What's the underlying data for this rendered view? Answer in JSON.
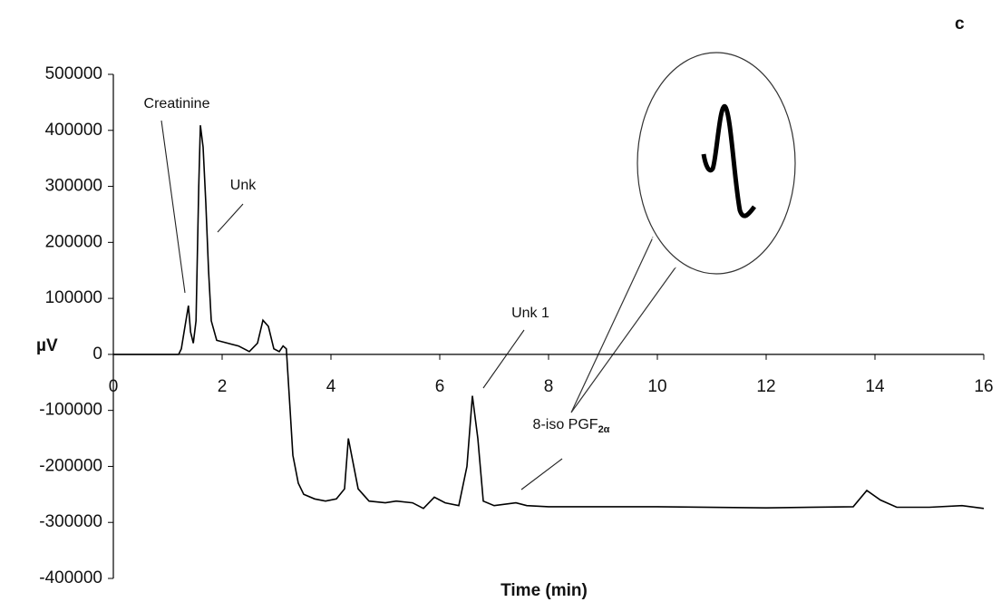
{
  "chart_data": {
    "type": "line",
    "panel_label": "c",
    "x_label": "Time (min)",
    "y_label": "µV",
    "x": [
      0,
      1.2,
      1.25,
      1.3,
      1.38,
      1.42,
      1.47,
      1.52,
      1.57,
      1.6,
      1.65,
      1.7,
      1.75,
      1.8,
      1.9,
      2.1,
      2.3,
      2.5,
      2.65,
      2.75,
      2.85,
      2.95,
      3.05,
      3.12,
      3.18,
      3.25,
      3.3,
      3.4,
      3.5,
      3.7,
      3.9,
      4.1,
      4.25,
      4.32,
      4.4,
      4.5,
      4.7,
      5.0,
      5.2,
      5.5,
      5.7,
      5.9,
      6.1,
      6.35,
      6.5,
      6.6,
      6.7,
      6.8,
      7.0,
      7.4,
      7.6,
      8.0,
      10,
      12,
      13.6,
      13.85,
      14.1,
      14.4,
      15.0,
      15.6,
      16.0
    ],
    "values": [
      0,
      0,
      10000,
      40000,
      87000,
      40000,
      20000,
      60000,
      300000,
      409000,
      370000,
      270000,
      150000,
      60000,
      25000,
      20000,
      15000,
      5000,
      20000,
      61000,
      50000,
      10000,
      5000,
      15000,
      10000,
      -100000,
      -180000,
      -230000,
      -250000,
      -258000,
      -262000,
      -258000,
      -240000,
      -150000,
      -190000,
      -240000,
      -262000,
      -265000,
      -262000,
      -265000,
      -275000,
      -255000,
      -265000,
      -270000,
      -200000,
      -74000,
      -150000,
      -262000,
      -270000,
      -265000,
      -270000,
      -272000,
      -272000,
      -274000,
      -272000,
      -243000,
      -260000,
      -273000,
      -273000,
      -270000,
      -275000
    ],
    "color": "#000000",
    "xlim": [
      0,
      16
    ],
    "xticks": [
      0,
      2,
      4,
      6,
      8,
      10,
      12,
      14,
      16
    ],
    "ylim": [
      -400000,
      500000
    ],
    "yticks": [
      -400000,
      -300000,
      -200000,
      -100000,
      0,
      100000,
      200000,
      300000,
      400000,
      500000
    ],
    "annotations": [
      {
        "text": "Creatinine"
      },
      {
        "text": "Unk"
      },
      {
        "text": "Unk 1"
      },
      {
        "text": "8-iso PGF",
        "subscript": "2α"
      }
    ]
  }
}
